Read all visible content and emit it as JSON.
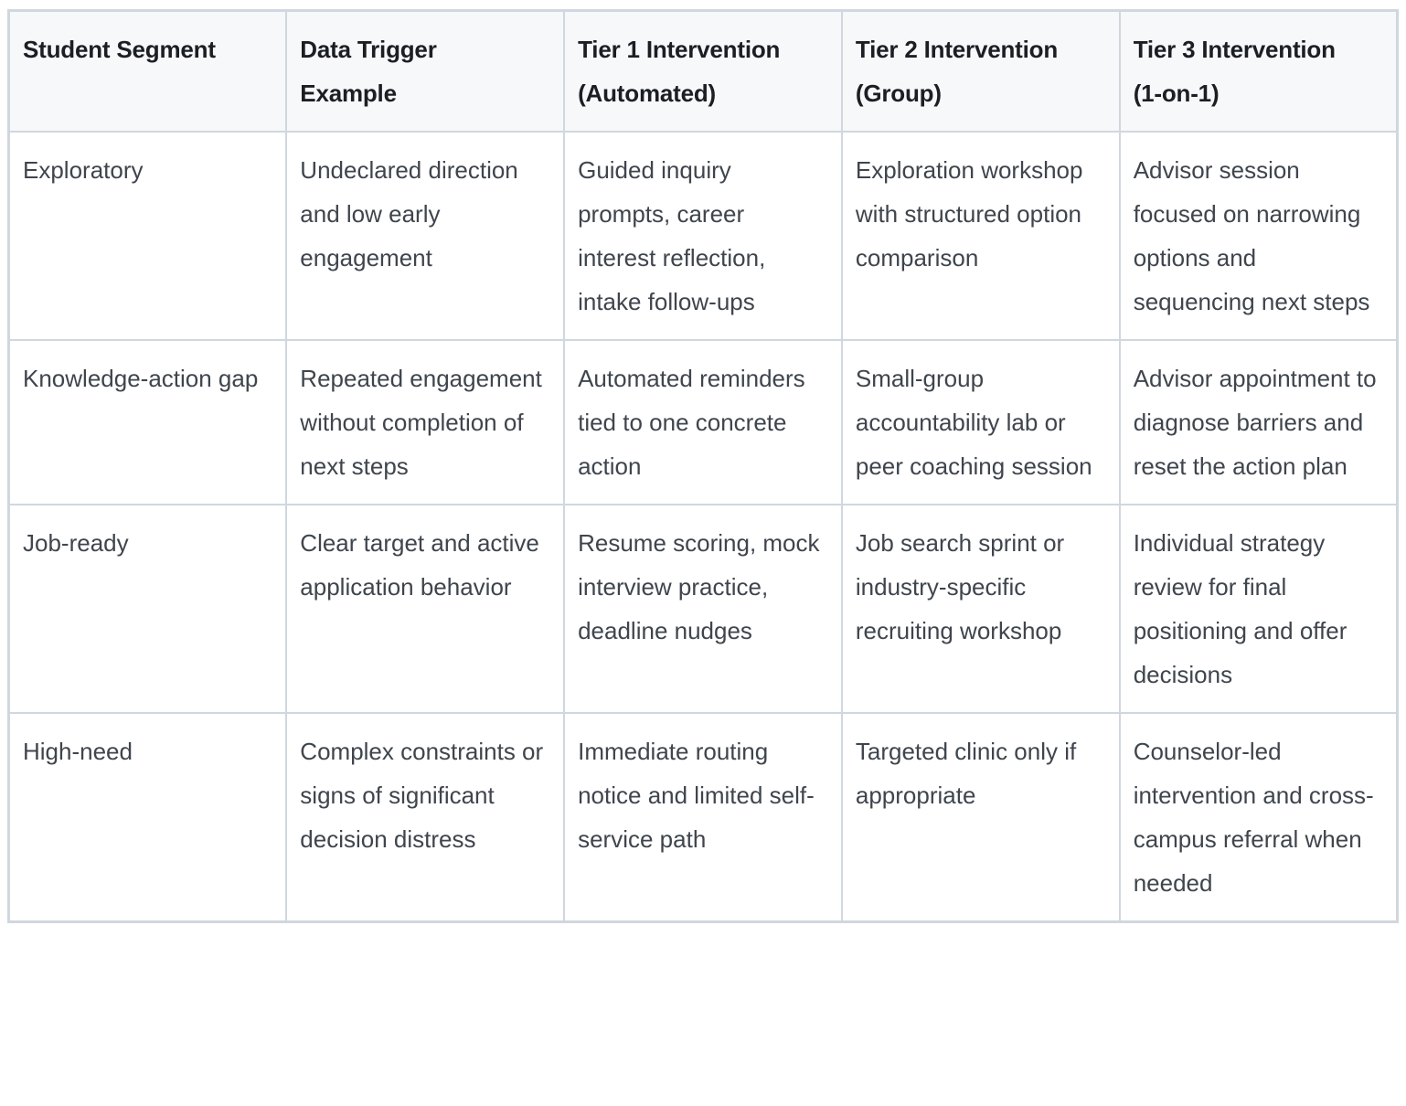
{
  "table": {
    "columns": [
      {
        "label": "Student Segment",
        "lines": [
          "Student Segment"
        ]
      },
      {
        "label": "Data Trigger Example",
        "lines": [
          "Data Trigger",
          "Example"
        ]
      },
      {
        "label": "Tier 1 Intervention (Automated)",
        "lines": [
          "Tier 1 Intervention",
          "(Automated)"
        ]
      },
      {
        "label": "Tier 2 Intervention (Group)",
        "lines": [
          "Tier 2 Intervention",
          "(Group)"
        ]
      },
      {
        "label": "Tier 3 Intervention (1-on-1)",
        "lines": [
          "Tier 3 Intervention",
          "(1-on-1)"
        ]
      }
    ],
    "rows": [
      {
        "cells": [
          "Exploratory",
          "Undeclared direction and low early engagement",
          "Guided inquiry prompts, career interest reflection, intake follow-ups",
          "Exploration workshop with structured option comparison",
          "Advisor session focused on narrowing options and sequencing next steps"
        ]
      },
      {
        "cells": [
          "Knowledge-action gap",
          "Repeated engagement without completion of next steps",
          "Automated reminders tied to one concrete action",
          "Small-group accountability lab or peer coaching session",
          "Advisor appointment to diagnose barriers and reset the action plan"
        ]
      },
      {
        "cells": [
          "Job-ready",
          "Clear target and active application behavior",
          "Resume scoring, mock interview practice, deadline nudges",
          "Job search sprint or industry-specific recruiting workshop",
          "Individual strategy review for final positioning and offer decisions"
        ]
      },
      {
        "cells": [
          "High-need",
          "Complex constraints or signs of significant decision distress",
          "Immediate routing notice and limited self-service path",
          "Targeted clinic only if appropriate",
          "Counselor-led intervention and cross-campus referral when needed"
        ]
      }
    ]
  },
  "colors": {
    "page_background": "#ffffff",
    "header_background": "#f6f8fa",
    "row_background": "#ffffff",
    "border": "#d0d7de",
    "header_text": "#1b1f24",
    "body_text": "#3f454d"
  }
}
